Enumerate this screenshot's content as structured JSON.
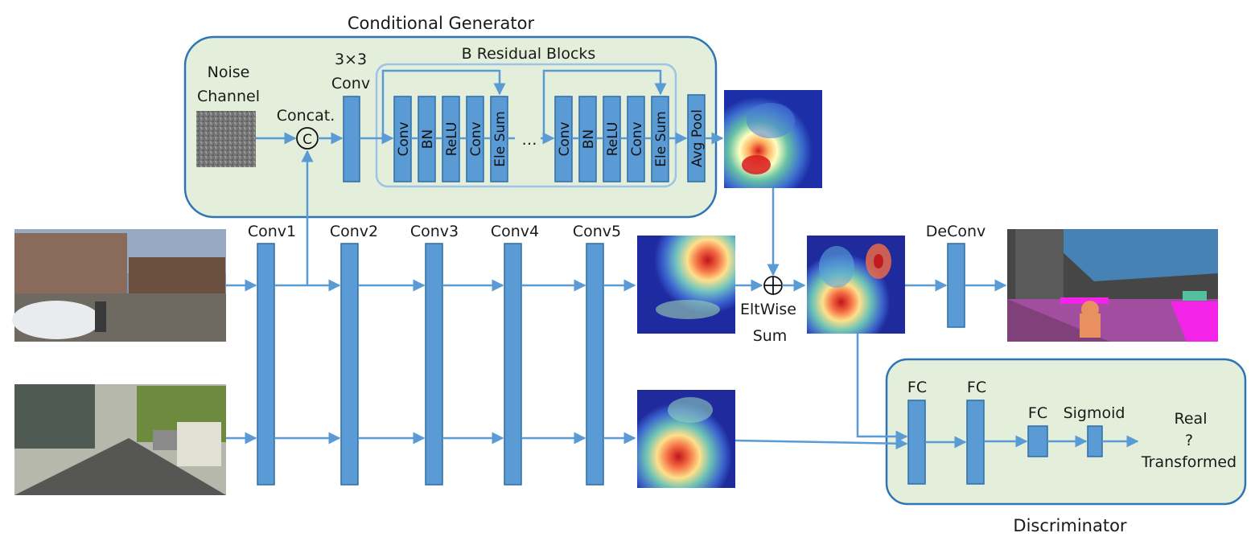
{
  "colors": {
    "block": "#5b9bd5",
    "arrow": "#5b9bd5",
    "panel_fill": "#e3efda",
    "panel_border": "#2e75b6",
    "residual_border": "#9dc3e6"
  },
  "generator": {
    "title": "Conditional Generator",
    "noise_label": [
      "Noise",
      "Channel"
    ],
    "concat_label": "Concat.",
    "concat_symbol": "C",
    "conv_label": [
      "3×3",
      "Conv"
    ],
    "residual_title": "B Residual Blocks",
    "block1": [
      "Conv",
      "BN",
      "ReLU",
      "Conv",
      "Ele Sum"
    ],
    "ellipsis": "…",
    "block2": [
      "Conv",
      "BN",
      "ReLU",
      "Conv",
      "Ele Sum"
    ],
    "avgpool": "Avg Pool"
  },
  "backbone": {
    "layers": [
      "Conv1",
      "Conv2",
      "Conv3",
      "Conv4",
      "Conv5"
    ]
  },
  "eltwise": {
    "symbol": "⊕",
    "label": [
      "EltWise",
      "Sum"
    ]
  },
  "deconv": "DeConv",
  "discriminator": {
    "title": "Discriminator",
    "fc": [
      "FC",
      "FC",
      "FC"
    ],
    "sigmoid": "Sigmoid",
    "output": [
      "Real",
      "?",
      "Transformed"
    ]
  },
  "images": {
    "input_top": "street-scene-photo",
    "input_bottom": "street-scene-photo",
    "segmentation": "segmentation-map",
    "heatmaps": [
      "heatmap-generator-output",
      "heatmap-conv5-top",
      "heatmap-sum",
      "heatmap-conv5-bottom"
    ]
  }
}
